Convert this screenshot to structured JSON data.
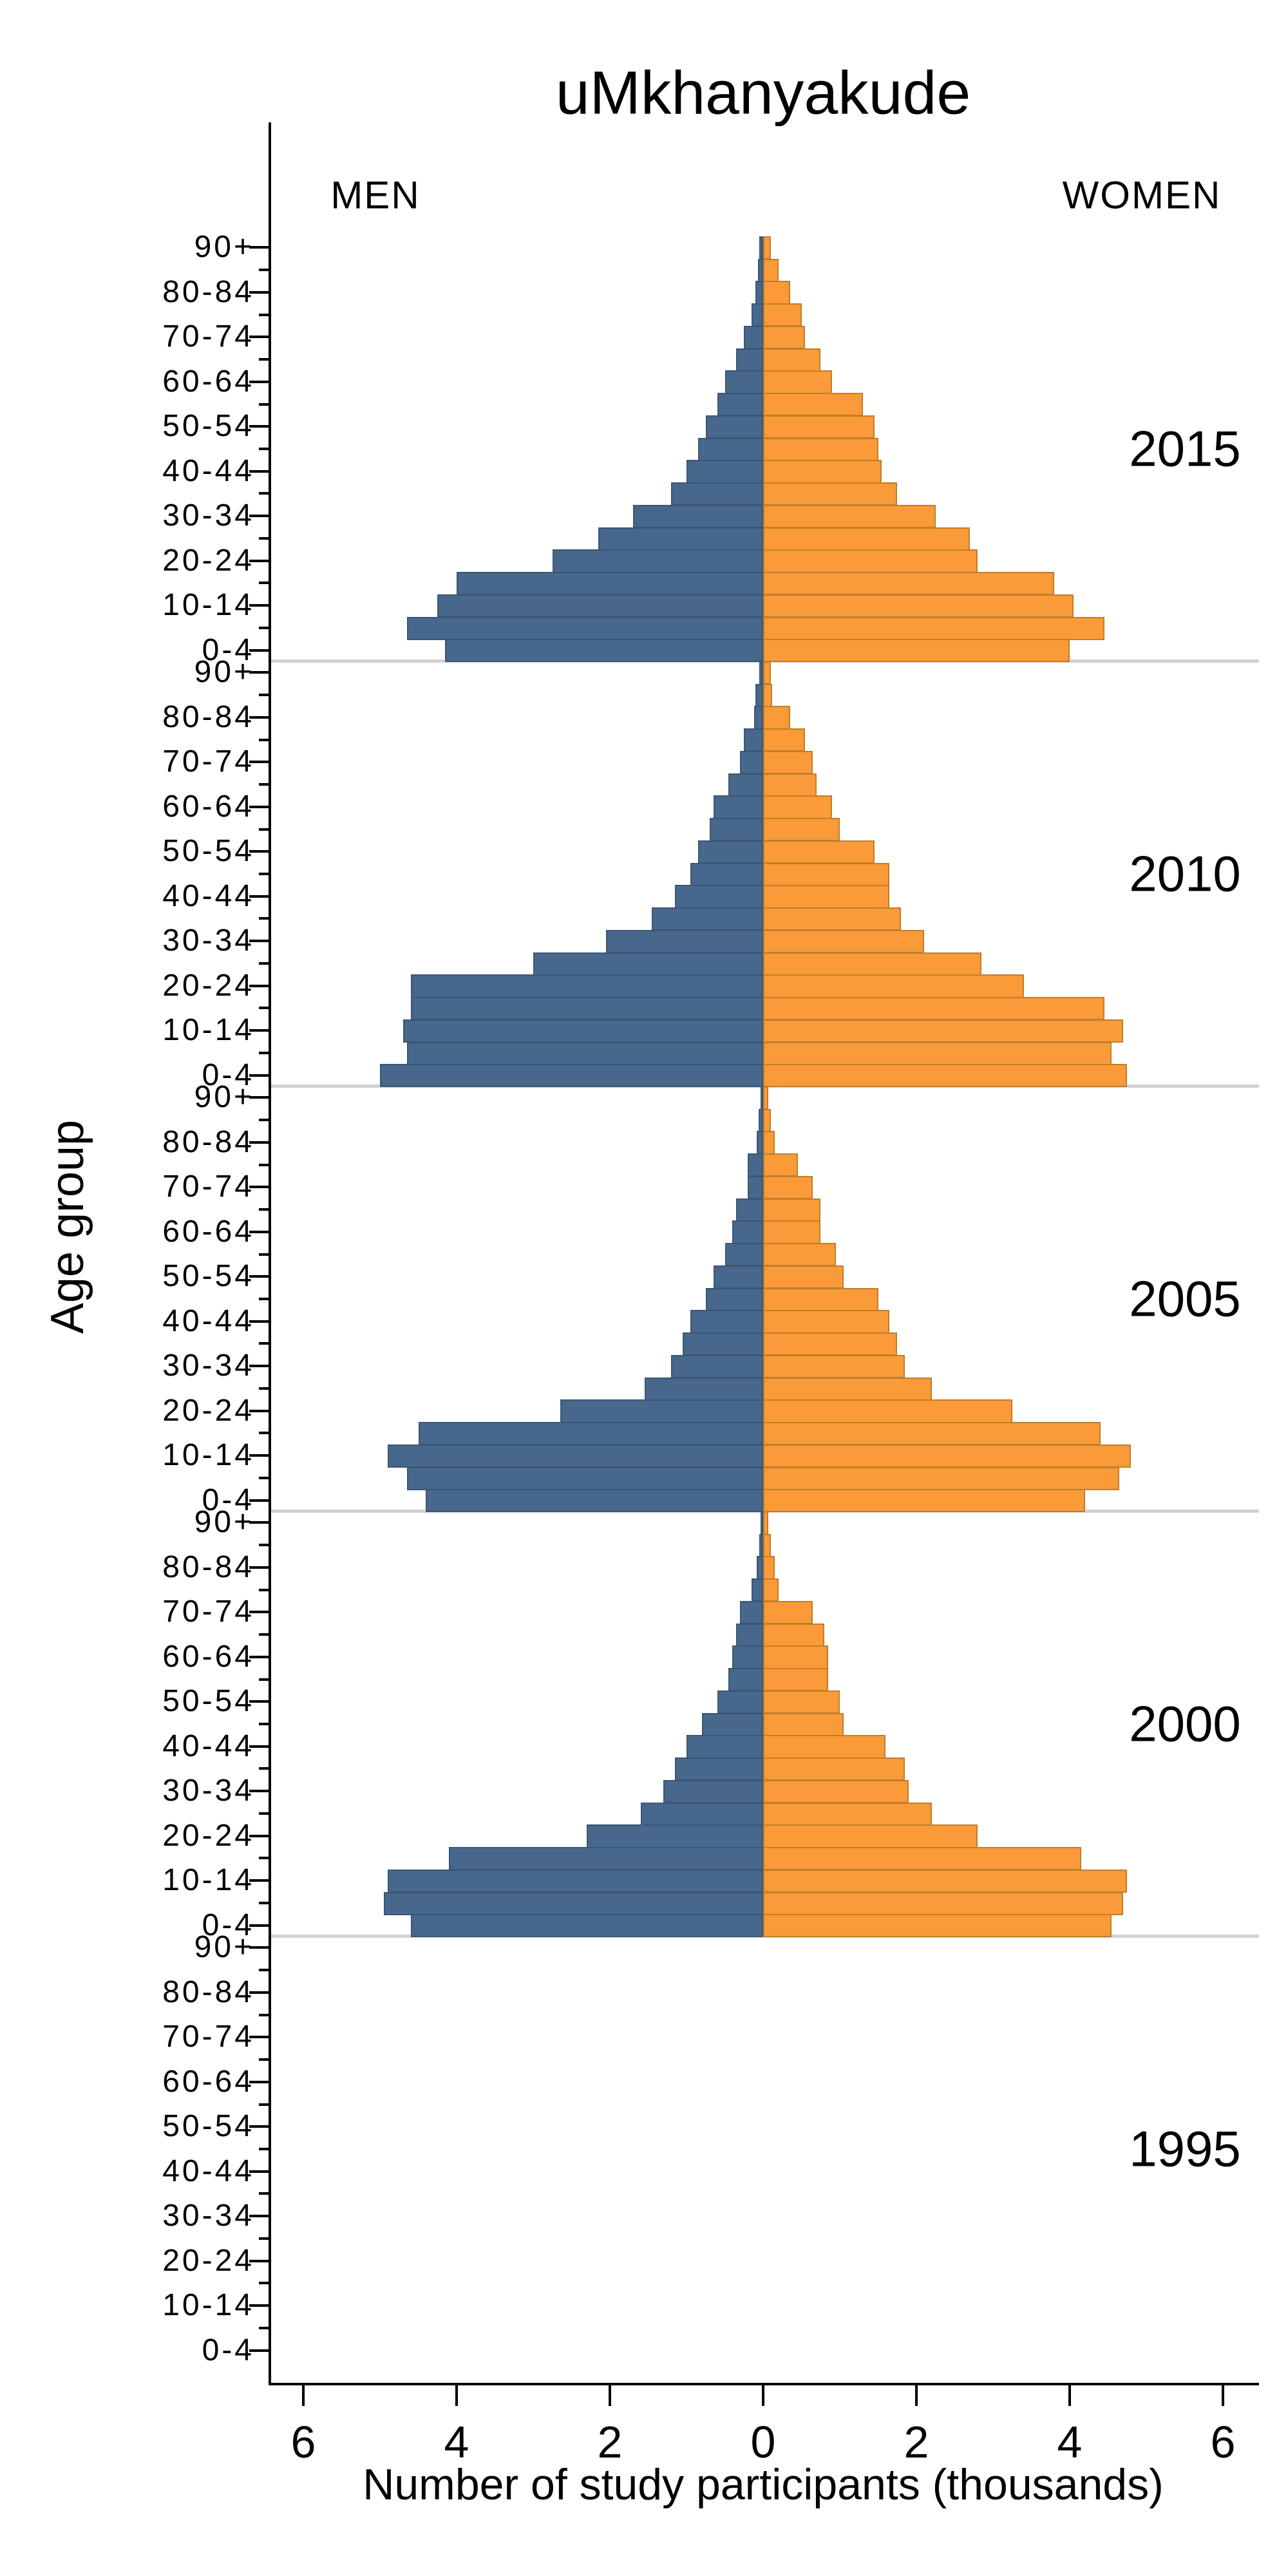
{
  "title": "uMkhanyakude",
  "header": {
    "men_label": "MEN",
    "women_label": "WOMEN"
  },
  "axes": {
    "ylabel": "Age group",
    "xlabel": "Number of study participants (thousands)",
    "x_tick_labels": [
      "6",
      "4",
      "2",
      "0",
      "2",
      "4",
      "6"
    ],
    "x_tick_values": [
      -6,
      -4,
      -2,
      0,
      2,
      4,
      6
    ],
    "x_range_thousands": [
      -6,
      6
    ],
    "y_labeled_ticks": [
      "90+",
      "80-84",
      "70-74",
      "60-64",
      "50-54",
      "40-44",
      "30-34",
      "20-24",
      "10-14",
      "0-4"
    ]
  },
  "colors": {
    "men_fill": "#47688C",
    "men_border": "#3A5674",
    "women_fill": "#FA9A38",
    "women_border": "#C07E2B",
    "separator": "#D2D2D2",
    "axis": "#000000"
  },
  "chart_data": {
    "type": "bar",
    "subtype": "population-pyramid",
    "unit": "thousands of study participants",
    "orientation": "men-left-women-right",
    "age_groups_top_to_bottom": [
      "90+",
      "85-89",
      "80-84",
      "75-79",
      "70-74",
      "65-69",
      "60-64",
      "55-59",
      "50-54",
      "45-49",
      "40-44",
      "35-39",
      "30-34",
      "25-29",
      "20-24",
      "15-19",
      "10-14",
      "5-9",
      "0-4"
    ],
    "panels": [
      {
        "year": "2015",
        "men": [
          0.05,
          0.07,
          0.1,
          0.15,
          0.25,
          0.35,
          0.5,
          0.6,
          0.75,
          0.85,
          1.0,
          1.2,
          1.7,
          2.15,
          2.75,
          4.0,
          4.25,
          4.65,
          4.15
        ],
        "women": [
          0.1,
          0.2,
          0.35,
          0.5,
          0.55,
          0.75,
          0.9,
          1.3,
          1.45,
          1.5,
          1.55,
          1.75,
          2.25,
          2.7,
          2.8,
          3.8,
          4.05,
          4.45,
          4.0
        ]
      },
      {
        "year": "2010",
        "men": [
          0.05,
          0.1,
          0.12,
          0.25,
          0.3,
          0.45,
          0.65,
          0.7,
          0.85,
          0.95,
          1.15,
          1.45,
          2.05,
          3.0,
          4.6,
          4.6,
          4.7,
          4.65,
          5.0
        ],
        "women": [
          0.1,
          0.12,
          0.35,
          0.55,
          0.65,
          0.7,
          0.9,
          1.0,
          1.45,
          1.65,
          1.65,
          1.8,
          2.1,
          2.85,
          3.4,
          4.45,
          4.7,
          4.55,
          4.75
        ]
      },
      {
        "year": "2005",
        "men": [
          0.03,
          0.06,
          0.08,
          0.2,
          0.2,
          0.35,
          0.4,
          0.5,
          0.65,
          0.75,
          0.95,
          1.05,
          1.2,
          1.55,
          2.65,
          4.5,
          4.9,
          4.65,
          4.4
        ],
        "women": [
          0.07,
          0.1,
          0.15,
          0.45,
          0.65,
          0.75,
          0.75,
          0.95,
          1.05,
          1.5,
          1.65,
          1.75,
          1.85,
          2.2,
          3.25,
          4.4,
          4.8,
          4.65,
          4.2
        ]
      },
      {
        "year": "2000",
        "men": [
          0.03,
          0.05,
          0.08,
          0.15,
          0.3,
          0.35,
          0.4,
          0.45,
          0.6,
          0.8,
          1.0,
          1.15,
          1.3,
          1.6,
          2.3,
          4.1,
          4.9,
          4.95,
          4.6
        ],
        "women": [
          0.07,
          0.1,
          0.15,
          0.2,
          0.65,
          0.8,
          0.85,
          0.85,
          1.0,
          1.05,
          1.6,
          1.85,
          1.9,
          2.2,
          2.8,
          4.15,
          4.75,
          4.7,
          4.55
        ]
      },
      {
        "year": "1995",
        "men": [
          0,
          0,
          0,
          0,
          0,
          0,
          0,
          0,
          0,
          0,
          0,
          0,
          0,
          0,
          0,
          0,
          0,
          0,
          0
        ],
        "women": [
          0,
          0,
          0,
          0,
          0,
          0,
          0,
          0,
          0,
          0,
          0,
          0,
          0,
          0,
          0,
          0,
          0,
          0,
          0
        ]
      }
    ],
    "legend_position": "column headers MEN / WOMEN, year label right of each panel",
    "grid": false
  }
}
